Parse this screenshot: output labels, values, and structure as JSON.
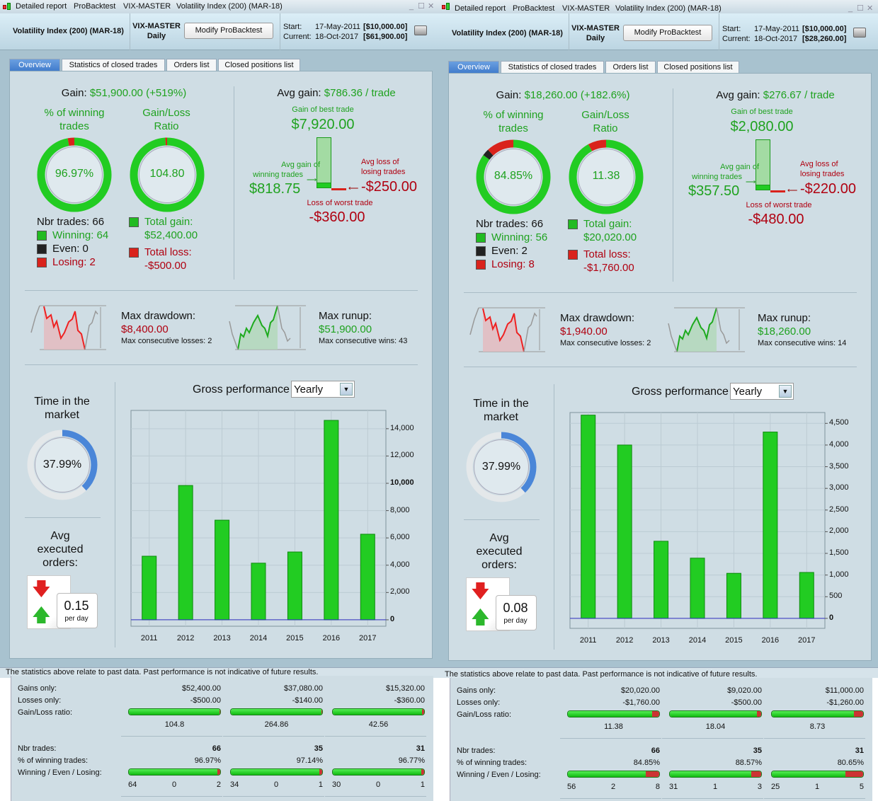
{
  "panels": [
    {
      "title_bar": [
        "Detailed report",
        "ProBacktest",
        "VIX-MASTER",
        "Volatility Index (200) (MAR-18)"
      ],
      "header": {
        "instrument": "Volatility Index (200) (MAR-18)",
        "system": "VIX-MASTER",
        "timeframe": "Daily",
        "modify_label": "Modify ProBacktest",
        "start_label": "Start:",
        "start_date": "17-May-2011",
        "start_capital": "[$10,000.00]",
        "current_label": "Current:",
        "current_date": "18-Oct-2017",
        "current_capital": "[$61,900.00]"
      },
      "tabs": [
        "Overview",
        "Statistics of closed trades",
        "Orders list",
        "Closed positions list"
      ],
      "gain": {
        "label": "Gain:",
        "value": "$51,900.00 (+519%)"
      },
      "winning_label": "% of winning trades",
      "ratio_label": "Gain/Loss Ratio",
      "winning_pct": "96.97%",
      "winning_fraction": 0.9697,
      "even_fraction": 0,
      "ratio": "104.80",
      "ratio_loss_fraction": 0.0095,
      "nbr_trades": "Nbr trades: 66",
      "winning": "Winning: 64",
      "even": "Even: 0",
      "losing": "Losing: 2",
      "total_gain_label": "Total gain:",
      "total_gain": "$52,400.00",
      "total_loss_label": "Total loss:",
      "total_loss": "-$500.00",
      "avg": {
        "label": "Avg gain:",
        "value": "$786.36 / trade",
        "best_label": "Gain of best trade",
        "best": "$7,920.00",
        "avg_win_label1": "Avg gain of",
        "avg_win_label2": "winning trades",
        "avg_win": "$818.75",
        "avg_loss_label1": "Avg loss of",
        "avg_loss_label2": "losing trades",
        "avg_loss": "-$250.00",
        "worst_label": "Loss of worst trade",
        "worst": "-$360.00"
      },
      "drawdown": {
        "label": "Max drawdown:",
        "value": "$8,400.00",
        "sub": "Max consecutive losses: 2"
      },
      "runup": {
        "label": "Max runup:",
        "value": "$51,900.00",
        "sub": "Max consecutive wins: 43"
      },
      "time_label": "Time in the market",
      "time_pct": "37.99%",
      "time_fraction": 0.3799,
      "orders_label": "Avg executed orders:",
      "orders_value": "0.15",
      "orders_unit": "per day",
      "perf_label": "Gross performance",
      "perf_select": "Yearly",
      "chart_data": {
        "type": "bar",
        "title": "Gross performance",
        "categories": [
          "2011",
          "2012",
          "2013",
          "2014",
          "2015",
          "2016",
          "2017"
        ],
        "values": [
          4660,
          9840,
          7300,
          4150,
          4970,
          14610,
          6270
        ],
        "yticks": [
          "0",
          "2,000",
          "4,000",
          "6,000",
          "8,000",
          "10,000",
          "12,000",
          "14,000"
        ],
        "ytick_values": [
          0,
          2000,
          4000,
          6000,
          8000,
          10000,
          12000,
          14000
        ],
        "ylim": [
          -470,
          15340
        ]
      },
      "disclaimer": "The statistics above relate to past data. Past performance is not indicative of future results.",
      "table": {
        "labels": [
          "Gains only:",
          "Losses only:",
          "Gain/Loss ratio:",
          "Nbr trades:",
          "% of winning trades:",
          "Winning / Even / Losing:"
        ],
        "cols": [
          {
            "gains": "$52,400.00",
            "losses": "-$500.00",
            "ratio": "104.8",
            "ratio_green": 0.99,
            "nbr": "66",
            "pct": "96.97%",
            "w": "64",
            "e": "0",
            "l": "2",
            "wf": 0.97,
            "ef": 0
          },
          {
            "gains": "$37,080.00",
            "losses": "-$140.00",
            "ratio": "264.86",
            "ratio_green": 0.996,
            "nbr": "35",
            "pct": "97.14%",
            "w": "34",
            "e": "0",
            "l": "1",
            "wf": 0.97,
            "ef": 0
          },
          {
            "gains": "$15,320.00",
            "losses": "-$360.00",
            "ratio": "42.56",
            "ratio_green": 0.977,
            "nbr": "31",
            "pct": "96.77%",
            "w": "30",
            "e": "0",
            "l": "1",
            "wf": 0.97,
            "ef": 0
          }
        ]
      }
    },
    {
      "title_bar": [
        "Detailed report",
        "ProBacktest",
        "VIX-MASTER",
        "Volatility Index (200) (MAR-18)"
      ],
      "header": {
        "instrument": "Volatility Index (200) (MAR-18)",
        "system": "VIX-MASTER",
        "timeframe": "Daily",
        "modify_label": "Modify ProBacktest",
        "start_label": "Start:",
        "start_date": "17-May-2011",
        "start_capital": "[$10,000.00]",
        "current_label": "Current:",
        "current_date": "18-Oct-2017",
        "current_capital": "[$28,260.00]"
      },
      "tabs": [
        "Overview",
        "Statistics of closed trades",
        "Orders list",
        "Closed positions list"
      ],
      "gain": {
        "label": "Gain:",
        "value": "$18,260.00 (+182.6%)"
      },
      "winning_label": "% of winning trades",
      "ratio_label": "Gain/Loss Ratio",
      "winning_pct": "84.85%",
      "winning_fraction": 0.8485,
      "even_fraction": 0.0303,
      "ratio": "11.38",
      "ratio_loss_fraction": 0.081,
      "nbr_trades": "Nbr trades: 66",
      "winning": "Winning: 56",
      "even": "Even: 2",
      "losing": "Losing: 8",
      "total_gain_label": "Total gain:",
      "total_gain": "$20,020.00",
      "total_loss_label": "Total loss:",
      "total_loss": "-$1,760.00",
      "avg": {
        "label": "Avg gain:",
        "value": "$276.67 / trade",
        "best_label": "Gain of best trade",
        "best": "$2,080.00",
        "avg_win_label1": "Avg gain of",
        "avg_win_label2": "winning trades",
        "avg_win": "$357.50",
        "avg_loss_label1": "Avg loss of",
        "avg_loss_label2": "losing trades",
        "avg_loss": "-$220.00",
        "worst_label": "Loss of worst trade",
        "worst": "-$480.00"
      },
      "drawdown": {
        "label": "Max drawdown:",
        "value": "$1,940.00",
        "sub": "Max consecutive losses: 2"
      },
      "runup": {
        "label": "Max runup:",
        "value": "$18,260.00",
        "sub": "Max consecutive wins: 14"
      },
      "time_label": "Time in the market",
      "time_pct": "37.99%",
      "time_fraction": 0.3799,
      "orders_label": "Avg executed orders:",
      "orders_value": "0.08",
      "orders_unit": "per day",
      "perf_label": "Gross performance",
      "perf_select": "Yearly",
      "chart_data": {
        "type": "bar",
        "title": "Gross performance",
        "categories": [
          "2011",
          "2012",
          "2013",
          "2014",
          "2015",
          "2016",
          "2017"
        ],
        "values": [
          4690,
          4000,
          1780,
          1390,
          1040,
          4300,
          1060
        ],
        "yticks": [
          "0",
          "500",
          "1,000",
          "1,500",
          "2,000",
          "2,500",
          "3,000",
          "3,500",
          "4,000",
          "4,500"
        ],
        "ytick_values": [
          0,
          500,
          1000,
          1500,
          2000,
          2500,
          3000,
          3500,
          4000,
          4500
        ],
        "ylim": [
          -230,
          4750
        ]
      },
      "disclaimer": "The statistics above relate to past data. Past performance is not indicative of future results.",
      "table": {
        "labels": [
          "Gains only:",
          "Losses only:",
          "Gain/Loss ratio:",
          "Nbr trades:",
          "% of winning trades:",
          "Winning / Even / Losing:"
        ],
        "cols": [
          {
            "gains": "$20,020.00",
            "losses": "-$1,760.00",
            "ratio": "11.38",
            "ratio_green": 0.92,
            "nbr": "66",
            "pct": "84.85%",
            "w": "56",
            "e": "2",
            "l": "8",
            "wf": 0.85,
            "ef": 0.03
          },
          {
            "gains": "$9,020.00",
            "losses": "-$500.00",
            "ratio": "18.04",
            "ratio_green": 0.95,
            "nbr": "35",
            "pct": "88.57%",
            "w": "31",
            "e": "1",
            "l": "3",
            "wf": 0.89,
            "ef": 0.03
          },
          {
            "gains": "$11,000.00",
            "losses": "-$1,260.00",
            "ratio": "8.73",
            "ratio_green": 0.9,
            "nbr": "31",
            "pct": "80.65%",
            "w": "25",
            "e": "1",
            "l": "5",
            "wf": 0.81,
            "ef": 0.03
          }
        ]
      }
    }
  ],
  "colors": {
    "green": "#1fa21f",
    "red": "#b00010",
    "accent": "#3f7acb",
    "panel_bg": "#cfdde4"
  }
}
